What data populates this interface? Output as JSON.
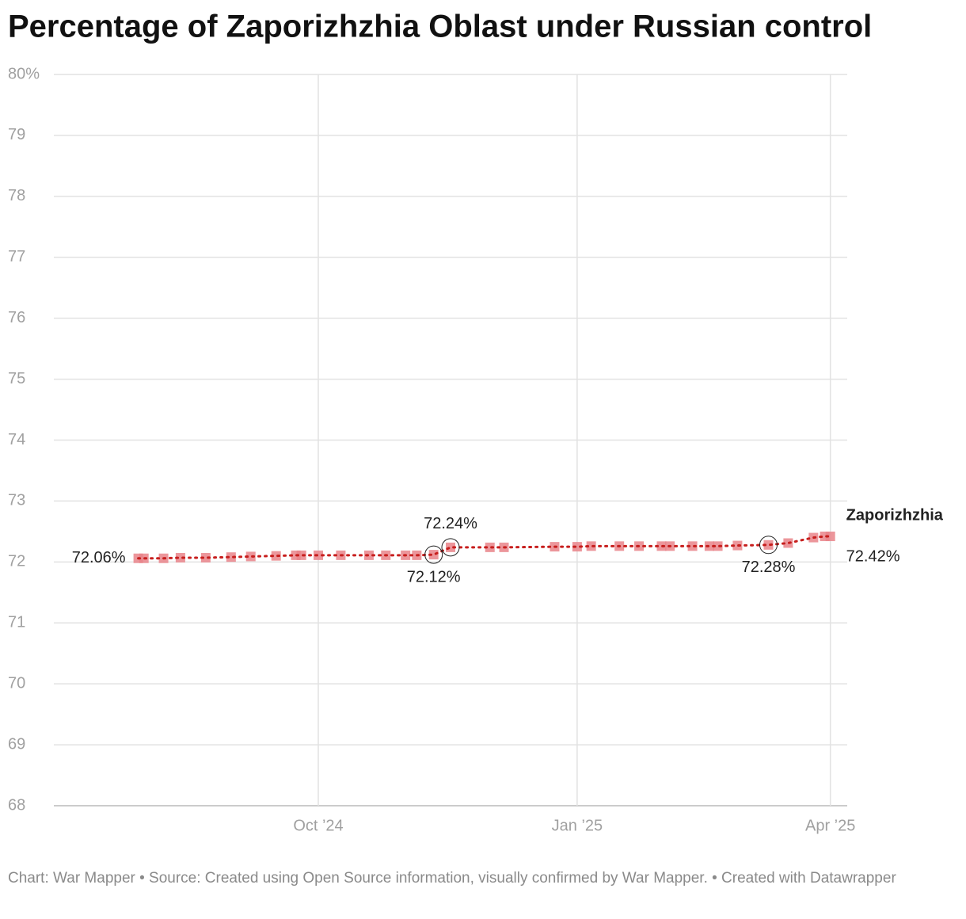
{
  "chart_data": {
    "type": "line",
    "title": "Percentage of Zaporizhzhia Oblast under Russian control",
    "note": "Chart: War Mapper • Source: Created using Open Source information, visually confirmed by War Mapper. • Created with Datawrapper",
    "x": [
      "2024-07-29",
      "2024-07-31",
      "2024-08-07",
      "2024-08-13",
      "2024-08-22",
      "2024-08-31",
      "2024-09-07",
      "2024-09-16",
      "2024-09-23",
      "2024-09-25",
      "2024-10-01",
      "2024-10-09",
      "2024-10-19",
      "2024-10-25",
      "2024-11-01",
      "2024-11-05",
      "2024-11-11",
      "2024-11-17",
      "2024-12-01",
      "2024-12-06",
      "2024-12-24",
      "2025-01-01",
      "2025-01-06",
      "2025-01-16",
      "2025-01-23",
      "2025-01-31",
      "2025-02-03",
      "2025-02-11",
      "2025-02-17",
      "2025-02-20",
      "2025-02-27",
      "2025-03-10",
      "2025-03-17",
      "2025-03-26",
      "2025-03-30",
      "2025-04-01"
    ],
    "series": [
      {
        "name": "Zaporizhzhia",
        "color": "#c71e1d",
        "marker_color": "#e98489",
        "values": [
          72.06,
          72.06,
          72.06,
          72.07,
          72.07,
          72.08,
          72.09,
          72.1,
          72.11,
          72.11,
          72.11,
          72.11,
          72.11,
          72.11,
          72.11,
          72.11,
          72.12,
          72.24,
          72.24,
          72.24,
          72.25,
          72.25,
          72.26,
          72.26,
          72.26,
          72.26,
          72.26,
          72.26,
          72.26,
          72.26,
          72.27,
          72.28,
          72.31,
          72.4,
          72.42,
          72.42
        ],
        "value_labels": [
          "72.06%",
          null,
          null,
          null,
          null,
          null,
          null,
          null,
          null,
          null,
          null,
          null,
          null,
          null,
          null,
          null,
          "72.12%",
          "72.24%",
          null,
          null,
          null,
          null,
          null,
          null,
          null,
          null,
          null,
          null,
          null,
          null,
          null,
          "72.28%",
          null,
          null,
          null,
          "72.42%"
        ]
      }
    ],
    "xlim": [
      "2024-06-29",
      "2025-04-07"
    ],
    "xticks": [
      {
        "value": "2024-10-01",
        "label": "Oct ’24"
      },
      {
        "value": "2025-01-01",
        "label": "Jan ’25"
      },
      {
        "value": "2025-04-01",
        "label": "Apr ’25"
      }
    ],
    "ylim": [
      68,
      80
    ],
    "yticks": [
      68,
      69,
      70,
      71,
      72,
      73,
      74,
      75,
      76,
      77,
      78,
      79,
      {
        "value": 80,
        "label": "80%"
      }
    ],
    "grid": true
  }
}
